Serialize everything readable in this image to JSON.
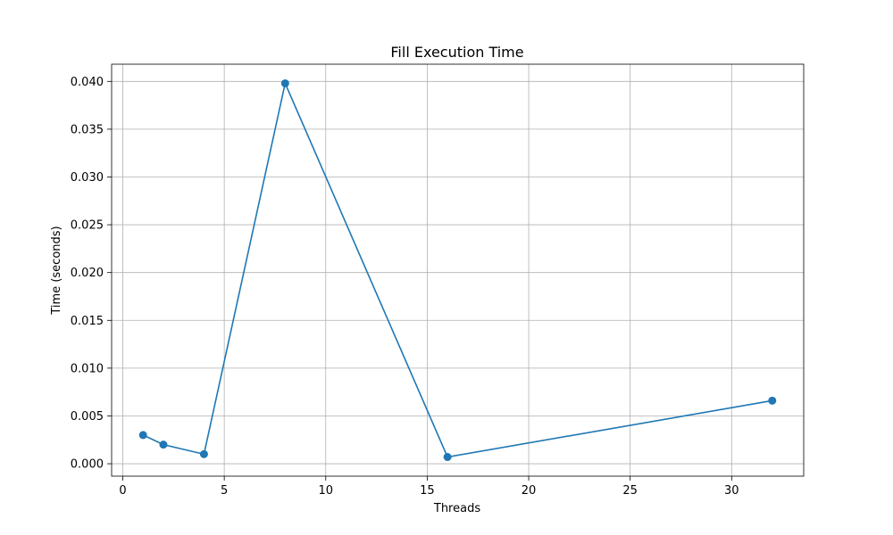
{
  "chart_data": {
    "type": "line",
    "title": "Fill Execution Time",
    "xlabel": "Threads",
    "ylabel": "Time (seconds)",
    "x": [
      1,
      2,
      4,
      8,
      16,
      32
    ],
    "series": [
      {
        "values": [
          0.003,
          0.002,
          0.001,
          0.0398,
          0.0007,
          0.0066
        ],
        "color": "#1f77b4",
        "marker": "circle"
      }
    ],
    "xlim": [
      -0.55,
      33.55
    ],
    "ylim": [
      -0.0013,
      0.0418
    ],
    "xticks": [
      0,
      5,
      10,
      15,
      20,
      25,
      30
    ],
    "yticks": [
      0.0,
      0.005,
      0.01,
      0.015,
      0.02,
      0.025,
      0.03,
      0.035,
      0.04
    ],
    "ytick_labels": [
      "0.000",
      "0.005",
      "0.010",
      "0.015",
      "0.020",
      "0.025",
      "0.030",
      "0.035",
      "0.040"
    ],
    "grid": true
  },
  "colors": {
    "grid": "#b0b0b0",
    "axes": "#000000",
    "line": "#1f77b4"
  }
}
